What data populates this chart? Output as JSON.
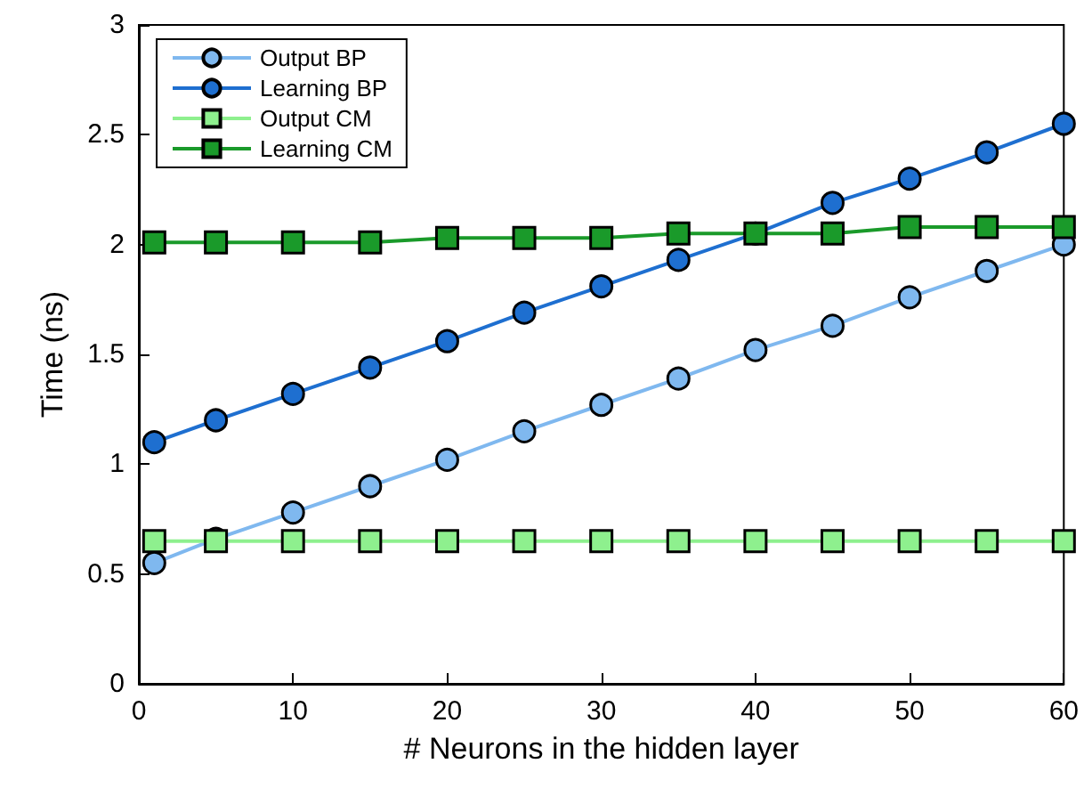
{
  "chart_data": {
    "type": "line",
    "xlabel": "# Neurons in the hidden layer",
    "ylabel": "Time (ns)",
    "x": [
      1,
      5,
      10,
      15,
      20,
      25,
      30,
      35,
      40,
      45,
      50,
      55,
      60
    ],
    "series": [
      {
        "name": "Output BP",
        "color": "#7fb8ef",
        "marker": "circle",
        "values": [
          0.55,
          0.66,
          0.78,
          0.9,
          1.02,
          1.15,
          1.27,
          1.39,
          1.52,
          1.63,
          1.76,
          1.88,
          2.0
        ]
      },
      {
        "name": "Learning BP",
        "color": "#1e6fd0",
        "marker": "circle",
        "values": [
          1.1,
          1.2,
          1.32,
          1.44,
          1.56,
          1.69,
          1.81,
          1.93,
          2.05,
          2.19,
          2.3,
          2.42,
          2.55
        ]
      },
      {
        "name": "Output CM",
        "color": "#8ef08e",
        "marker": "square",
        "values": [
          0.65,
          0.65,
          0.65,
          0.65,
          0.65,
          0.65,
          0.65,
          0.65,
          0.65,
          0.65,
          0.65,
          0.65,
          0.65
        ]
      },
      {
        "name": "Learning CM",
        "color": "#1a9a2a",
        "marker": "square",
        "values": [
          2.01,
          2.01,
          2.01,
          2.01,
          2.03,
          2.03,
          2.03,
          2.05,
          2.05,
          2.05,
          2.08,
          2.08,
          2.08
        ]
      }
    ],
    "xlim": [
      0,
      60
    ],
    "xticks": [
      0,
      10,
      20,
      30,
      40,
      50,
      60
    ],
    "ylim": [
      0,
      3
    ],
    "yticks": [
      0,
      0.5,
      1,
      1.5,
      2,
      2.5,
      3
    ],
    "grid": false,
    "legend": "top left",
    "line_style": "solid"
  }
}
